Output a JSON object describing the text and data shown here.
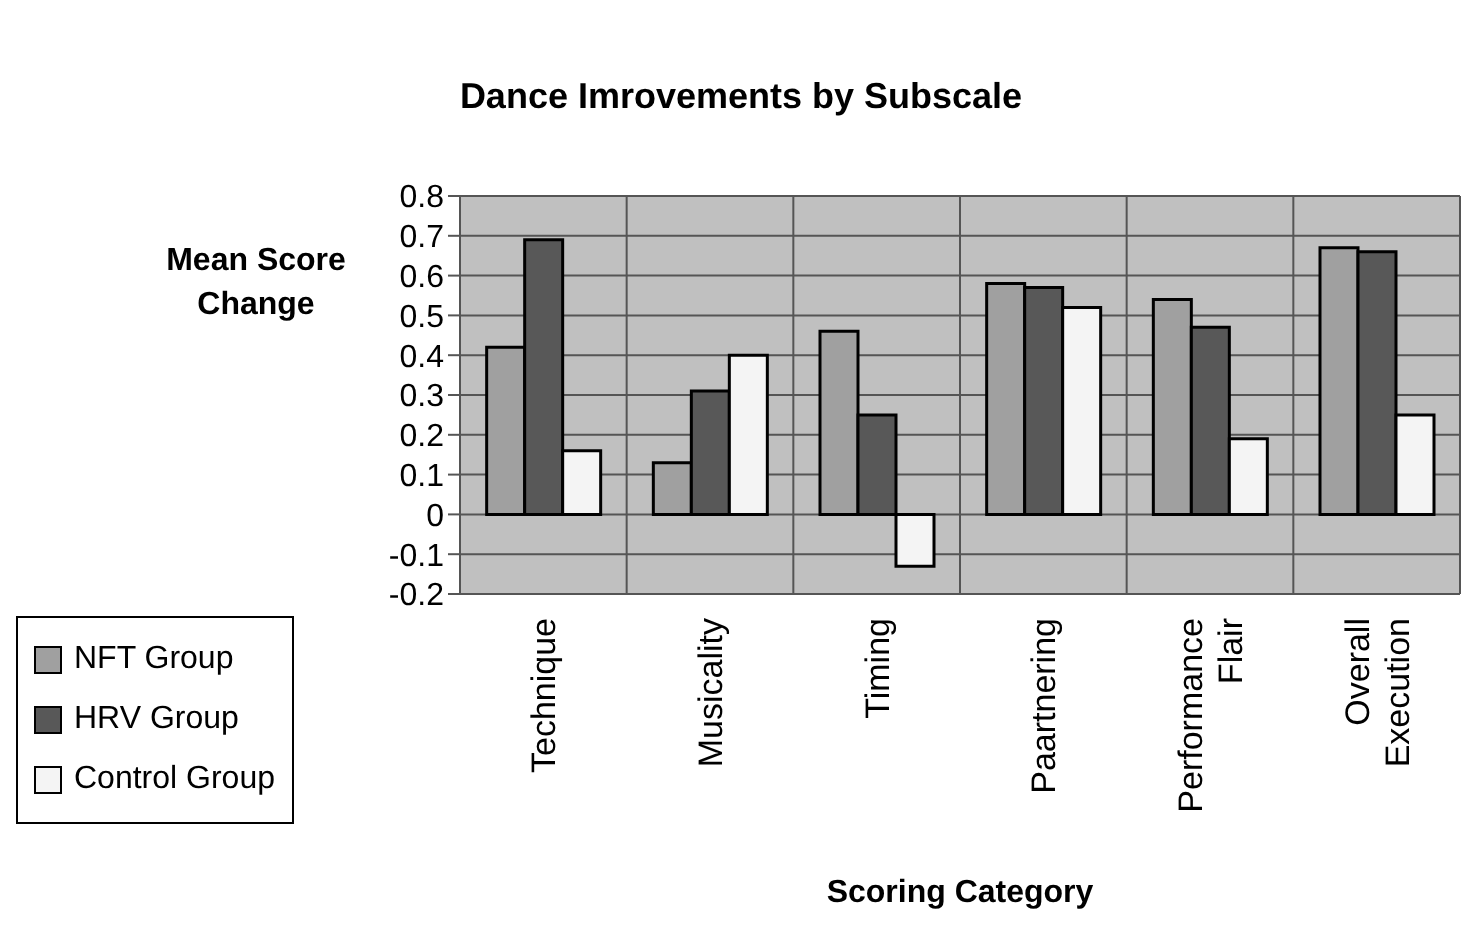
{
  "chart_data": {
    "type": "bar",
    "title": "Dance Imrovements by Subscale",
    "xlabel": "Scoring Category",
    "ylabel": "Mean Score Change",
    "categories": [
      "Technique",
      "Musicality",
      "Timing",
      "Paartnering",
      "Performance Flair",
      "Overall Execution"
    ],
    "series": [
      {
        "name": "NFT Group",
        "color": "#a0a0a0",
        "values": [
          0.42,
          0.13,
          0.46,
          0.58,
          0.54,
          0.67
        ]
      },
      {
        "name": "HRV Group",
        "color": "#585858",
        "values": [
          0.69,
          0.31,
          0.25,
          0.57,
          0.47,
          0.66
        ]
      },
      {
        "name": "Control Group",
        "color": "#f4f4f4",
        "values": [
          0.16,
          0.4,
          -0.13,
          0.52,
          0.19,
          0.25
        ]
      }
    ],
    "ylim": [
      -0.2,
      0.8
    ],
    "yticks": [
      -0.2,
      -0.1,
      0,
      0.1,
      0.2,
      0.3,
      0.4,
      0.5,
      0.6,
      0.7,
      0.8
    ],
    "grid": true,
    "legend": "bottom left"
  }
}
